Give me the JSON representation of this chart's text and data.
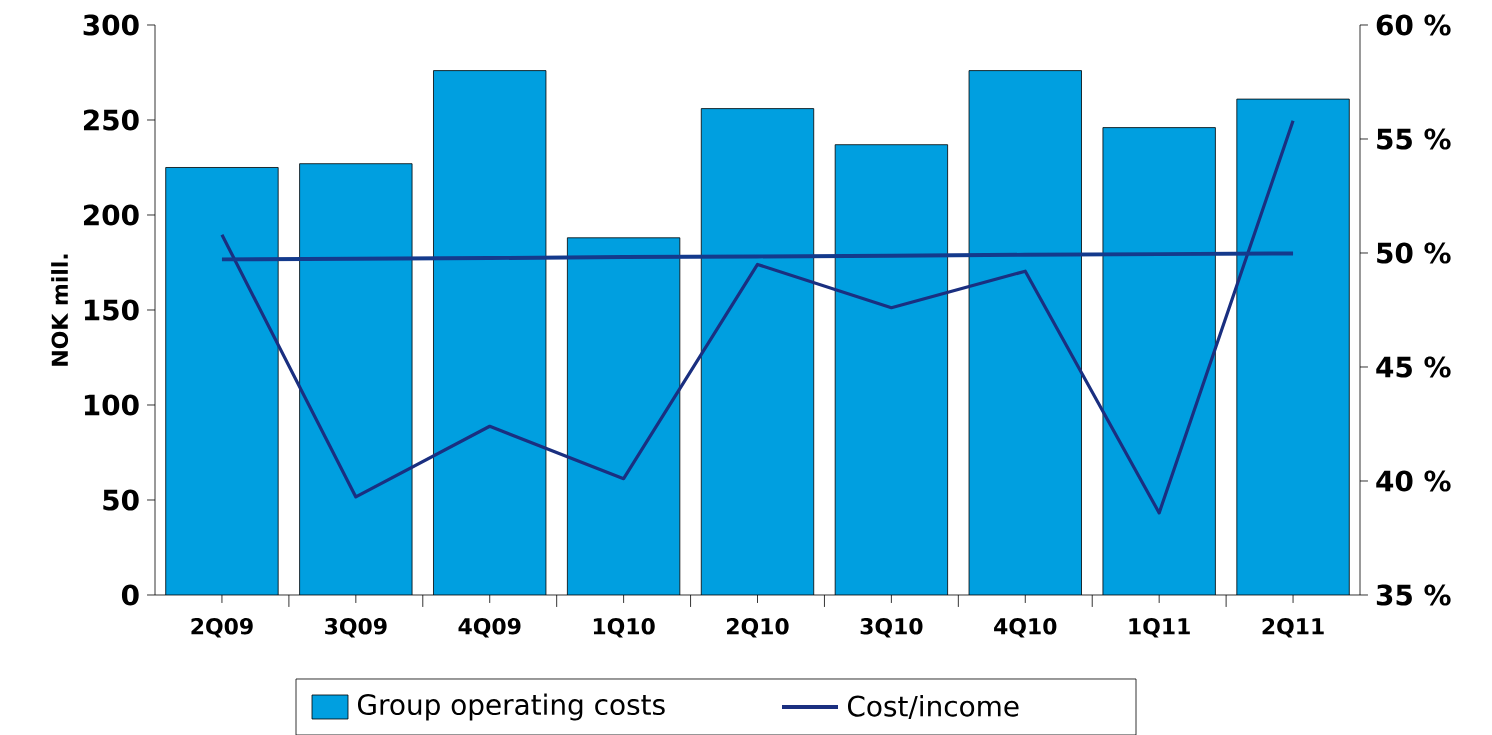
{
  "chart_data": {
    "type": "bar",
    "ylabel": "NOK mill.",
    "categories": [
      "2Q09",
      "3Q09",
      "4Q09",
      "1Q10",
      "2Q10",
      "3Q10",
      "4Q10",
      "1Q11",
      "2Q11"
    ],
    "series": [
      {
        "name": "Group operating costs",
        "color": "#009fe0",
        "values": [
          225,
          227,
          276,
          188,
          256,
          237,
          276,
          246,
          261
        ]
      },
      {
        "name": "Cost/income",
        "type": "line",
        "axis": "y2",
        "color": "#1a2f80",
        "values": [
          50.8,
          39.3,
          42.4,
          40.1,
          49.5,
          47.6,
          49.2,
          38.6,
          55.8
        ]
      },
      {
        "type": "line",
        "axis": "y2",
        "color": "#143a8c",
        "values": [
          49.72,
          49.75,
          49.78,
          49.82,
          49.85,
          49.88,
          49.92,
          49.95,
          49.98
        ]
      }
    ],
    "ylim": [
      0,
      300
    ],
    "yticks": [
      0,
      50,
      100,
      150,
      200,
      250,
      300
    ],
    "y2lim": [
      35,
      60
    ],
    "y2ticks": [
      {
        "value": 35,
        "label": "35 %"
      },
      {
        "value": 40,
        "label": "40 %"
      },
      {
        "value": 45,
        "label": "45 %"
      },
      {
        "value": 50,
        "label": "50 %"
      },
      {
        "value": 55,
        "label": "55 %"
      },
      {
        "value": 60,
        "label": "60 %"
      }
    ],
    "legend": "bottom",
    "grid": false
  }
}
